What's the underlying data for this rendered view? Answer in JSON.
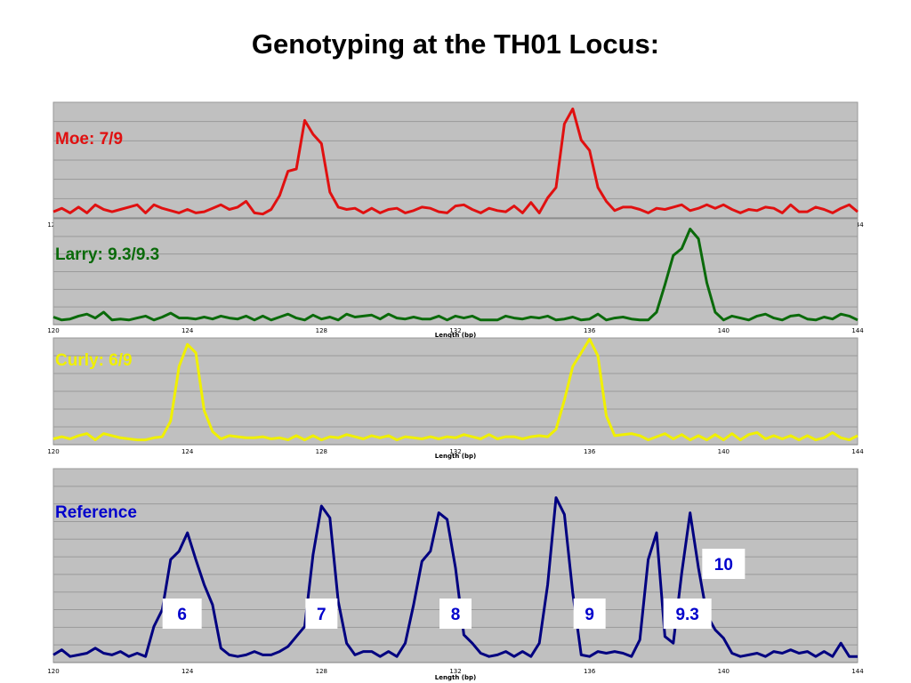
{
  "page": {
    "title": "Genotyping at the TH01 Locus:"
  },
  "chart_data": {
    "type": "line",
    "x_range": [
      120,
      144
    ],
    "x_ticks": [
      "120",
      "124",
      "128",
      "132",
      "136",
      "140",
      "144"
    ],
    "xlabel": "Length (bp)",
    "grid": true,
    "panels": [
      {
        "name": "Moe: 7/9",
        "color": "#e01010",
        "x": [
          120,
          120.25,
          120.5,
          120.75,
          121,
          121.25,
          121.5,
          121.75,
          122,
          122.25,
          122.5,
          122.75,
          123,
          123.25,
          123.5,
          123.75,
          124,
          124.25,
          124.5,
          124.75,
          125,
          125.25,
          125.5,
          125.75,
          126,
          126.25,
          126.5,
          126.75,
          127,
          127.25,
          127.5,
          127.75,
          128,
          128.25,
          128.5,
          128.75,
          129,
          129.25,
          129.5,
          129.75,
          130,
          130.25,
          130.5,
          130.75,
          131,
          131.25,
          131.5,
          131.75,
          132,
          132.25,
          132.5,
          132.75,
          133,
          133.25,
          133.5,
          133.75,
          134,
          134.25,
          134.5,
          134.75,
          135,
          135.25,
          135.5,
          135.75,
          136,
          136.25,
          136.5,
          136.75,
          137,
          137.25,
          137.5,
          137.75,
          138,
          138.25,
          138.5,
          138.75,
          139,
          139.25,
          139.5,
          139.75,
          140,
          140.25,
          140.5,
          140.75,
          141,
          141.25,
          141.5,
          141.75,
          142,
          142.25,
          142.5,
          142.75,
          143,
          143.25,
          143.5,
          143.75,
          144
        ],
        "y": [
          0.03,
          0.06,
          0.02,
          0.07,
          0.02,
          0.09,
          0.05,
          0.03,
          0.05,
          0.07,
          0.09,
          0.02,
          0.09,
          0.06,
          0.04,
          0.02,
          0.05,
          0.02,
          0.03,
          0.06,
          0.09,
          0.05,
          0.07,
          0.12,
          0.02,
          0.01,
          0.05,
          0.17,
          0.38,
          0.4,
          0.82,
          0.7,
          0.62,
          0.2,
          0.07,
          0.05,
          0.06,
          0.02,
          0.06,
          0.02,
          0.05,
          0.06,
          0.02,
          0.04,
          0.07,
          0.06,
          0.03,
          0.02,
          0.08,
          0.09,
          0.05,
          0.02,
          0.06,
          0.04,
          0.03,
          0.08,
          0.02,
          0.11,
          0.02,
          0.15,
          0.24,
          0.79,
          0.92,
          0.65,
          0.56,
          0.24,
          0.12,
          0.04,
          0.07,
          0.07,
          0.05,
          0.02,
          0.06,
          0.05,
          0.07,
          0.09,
          0.04,
          0.06,
          0.09,
          0.06,
          0.09,
          0.05,
          0.02,
          0.05,
          0.04,
          0.07,
          0.06,
          0.02,
          0.09,
          0.03,
          0.03,
          0.07,
          0.05,
          0.02,
          0.06,
          0.09,
          0.03
        ]
      },
      {
        "name": "Larry: 9.3/9.3",
        "color": "#0a6a0a",
        "x": [
          120,
          120.25,
          120.5,
          120.75,
          121,
          121.25,
          121.5,
          121.75,
          122,
          122.25,
          122.5,
          122.75,
          123,
          123.25,
          123.5,
          123.75,
          124,
          124.25,
          124.5,
          124.75,
          125,
          125.25,
          125.5,
          125.75,
          126,
          126.25,
          126.5,
          126.75,
          127,
          127.25,
          127.5,
          127.75,
          128,
          128.25,
          128.5,
          128.75,
          129,
          129.25,
          129.5,
          129.75,
          130,
          130.25,
          130.5,
          130.75,
          131,
          131.25,
          131.5,
          131.75,
          132,
          132.25,
          132.5,
          132.75,
          133,
          133.25,
          133.5,
          133.75,
          134,
          134.25,
          134.5,
          134.75,
          135,
          135.25,
          135.5,
          135.75,
          136,
          136.25,
          136.5,
          136.75,
          137,
          137.25,
          137.5,
          137.75,
          138,
          138.25,
          138.5,
          138.75,
          139,
          139.25,
          139.5,
          139.75,
          140,
          140.25,
          140.5,
          140.75,
          141,
          141.25,
          141.5,
          141.75,
          142,
          142.25,
          142.5,
          142.75,
          143,
          143.25,
          143.5,
          143.75,
          144
        ],
        "y": [
          0.05,
          0.02,
          0.03,
          0.06,
          0.08,
          0.04,
          0.1,
          0.02,
          0.03,
          0.02,
          0.04,
          0.06,
          0.02,
          0.05,
          0.09,
          0.04,
          0.04,
          0.03,
          0.05,
          0.03,
          0.06,
          0.04,
          0.03,
          0.06,
          0.02,
          0.06,
          0.02,
          0.05,
          0.08,
          0.04,
          0.02,
          0.07,
          0.03,
          0.05,
          0.02,
          0.08,
          0.05,
          0.06,
          0.07,
          0.03,
          0.08,
          0.04,
          0.03,
          0.05,
          0.03,
          0.03,
          0.06,
          0.02,
          0.06,
          0.04,
          0.06,
          0.02,
          0.02,
          0.02,
          0.06,
          0.04,
          0.03,
          0.05,
          0.04,
          0.06,
          0.02,
          0.03,
          0.05,
          0.02,
          0.03,
          0.08,
          0.02,
          0.04,
          0.05,
          0.03,
          0.02,
          0.02,
          0.1,
          0.38,
          0.68,
          0.75,
          0.95,
          0.85,
          0.4,
          0.1,
          0.02,
          0.06,
          0.04,
          0.02,
          0.06,
          0.08,
          0.04,
          0.02,
          0.06,
          0.07,
          0.03,
          0.02,
          0.05,
          0.03,
          0.08,
          0.06,
          0.02
        ]
      },
      {
        "name": "Curly: 6/9",
        "color": "#f0f000",
        "x": [
          120,
          120.25,
          120.5,
          120.75,
          121,
          121.25,
          121.5,
          121.75,
          122,
          122.25,
          122.5,
          122.75,
          123,
          123.25,
          123.5,
          123.75,
          124,
          124.25,
          124.5,
          124.75,
          125,
          125.25,
          125.5,
          125.75,
          126,
          126.25,
          126.5,
          126.75,
          127,
          127.25,
          127.5,
          127.75,
          128,
          128.25,
          128.5,
          128.75,
          129,
          129.25,
          129.5,
          129.75,
          130,
          130.25,
          130.5,
          130.75,
          131,
          131.25,
          131.5,
          131.75,
          132,
          132.25,
          132.5,
          132.75,
          133,
          133.25,
          133.5,
          133.75,
          134,
          134.25,
          134.5,
          134.75,
          135,
          135.25,
          135.5,
          135.75,
          136,
          136.25,
          136.5,
          136.75,
          137,
          137.25,
          137.5,
          137.75,
          138,
          138.25,
          138.5,
          138.75,
          139,
          139.25,
          139.5,
          139.75,
          140,
          140.25,
          140.5,
          140.75,
          141,
          141.25,
          141.5,
          141.75,
          142,
          142.25,
          142.5,
          142.75,
          143,
          143.25,
          143.5,
          143.75,
          144
        ],
        "y": [
          0.03,
          0.05,
          0.03,
          0.06,
          0.08,
          0.02,
          0.08,
          0.06,
          0.04,
          0.03,
          0.02,
          0.02,
          0.04,
          0.05,
          0.2,
          0.72,
          0.93,
          0.85,
          0.3,
          0.1,
          0.03,
          0.06,
          0.05,
          0.04,
          0.04,
          0.05,
          0.03,
          0.04,
          0.02,
          0.06,
          0.02,
          0.06,
          0.02,
          0.05,
          0.04,
          0.07,
          0.05,
          0.03,
          0.06,
          0.04,
          0.06,
          0.02,
          0.05,
          0.04,
          0.03,
          0.05,
          0.03,
          0.05,
          0.04,
          0.07,
          0.05,
          0.03,
          0.07,
          0.03,
          0.05,
          0.05,
          0.03,
          0.05,
          0.06,
          0.05,
          0.12,
          0.4,
          0.72,
          0.85,
          0.98,
          0.82,
          0.25,
          0.06,
          0.07,
          0.08,
          0.06,
          0.02,
          0.05,
          0.08,
          0.03,
          0.07,
          0.02,
          0.06,
          0.02,
          0.07,
          0.02,
          0.08,
          0.02,
          0.07,
          0.09,
          0.03,
          0.06,
          0.03,
          0.06,
          0.02,
          0.06,
          0.02,
          0.04,
          0.09,
          0.04,
          0.02,
          0.06
        ]
      },
      {
        "name": "Reference",
        "color": "#000080",
        "x": [
          120,
          120.25,
          120.5,
          120.75,
          121,
          121.25,
          121.5,
          121.75,
          122,
          122.25,
          122.5,
          122.75,
          123,
          123.25,
          123.5,
          123.75,
          124,
          124.25,
          124.5,
          124.75,
          125,
          125.25,
          125.5,
          125.75,
          126,
          126.25,
          126.5,
          126.75,
          127,
          127.25,
          127.5,
          127.75,
          128,
          128.25,
          128.5,
          128.75,
          129,
          129.25,
          129.5,
          129.75,
          130,
          130.25,
          130.5,
          130.75,
          131,
          131.25,
          131.5,
          131.75,
          132,
          132.25,
          132.5,
          132.75,
          133,
          133.25,
          133.5,
          133.75,
          134,
          134.25,
          134.5,
          134.75,
          135,
          135.25,
          135.5,
          135.75,
          136,
          136.25,
          136.5,
          136.75,
          137,
          137.25,
          137.5,
          137.75,
          138,
          138.25,
          138.5,
          138.75,
          139,
          139.25,
          139.5,
          139.75,
          140,
          140.25,
          140.5,
          140.75,
          141,
          141.25,
          141.5,
          141.75,
          142,
          142.25,
          142.5,
          142.75,
          143,
          143.25,
          143.5,
          143.75,
          144
        ],
        "y": [
          0.03,
          0.06,
          0.02,
          0.03,
          0.04,
          0.07,
          0.04,
          0.03,
          0.05,
          0.02,
          0.04,
          0.02,
          0.2,
          0.3,
          0.6,
          0.65,
          0.76,
          0.6,
          0.45,
          0.33,
          0.07,
          0.03,
          0.02,
          0.03,
          0.05,
          0.03,
          0.03,
          0.05,
          0.08,
          0.14,
          0.2,
          0.63,
          0.92,
          0.85,
          0.35,
          0.1,
          0.03,
          0.05,
          0.05,
          0.02,
          0.05,
          0.02,
          0.1,
          0.33,
          0.59,
          0.65,
          0.88,
          0.84,
          0.55,
          0.15,
          0.1,
          0.04,
          0.02,
          0.03,
          0.05,
          0.02,
          0.05,
          0.02,
          0.1,
          0.45,
          0.97,
          0.87,
          0.4,
          0.03,
          0.02,
          0.05,
          0.04,
          0.05,
          0.04,
          0.02,
          0.12,
          0.6,
          0.76,
          0.14,
          0.1,
          0.52,
          0.88,
          0.55,
          0.27,
          0.18,
          0.13,
          0.04,
          0.02,
          0.03,
          0.04,
          0.02,
          0.05,
          0.04,
          0.06,
          0.04,
          0.05,
          0.02,
          0.05,
          0.02,
          0.1,
          0.02,
          0.02
        ],
        "annotations": [
          {
            "label": "6",
            "x": 124
          },
          {
            "label": "7",
            "x": 128
          },
          {
            "label": "8",
            "x": 132
          },
          {
            "label": "9",
            "x": 136
          },
          {
            "label": "9.3",
            "x": 139
          },
          {
            "label": "10",
            "x": 140
          }
        ]
      }
    ]
  }
}
